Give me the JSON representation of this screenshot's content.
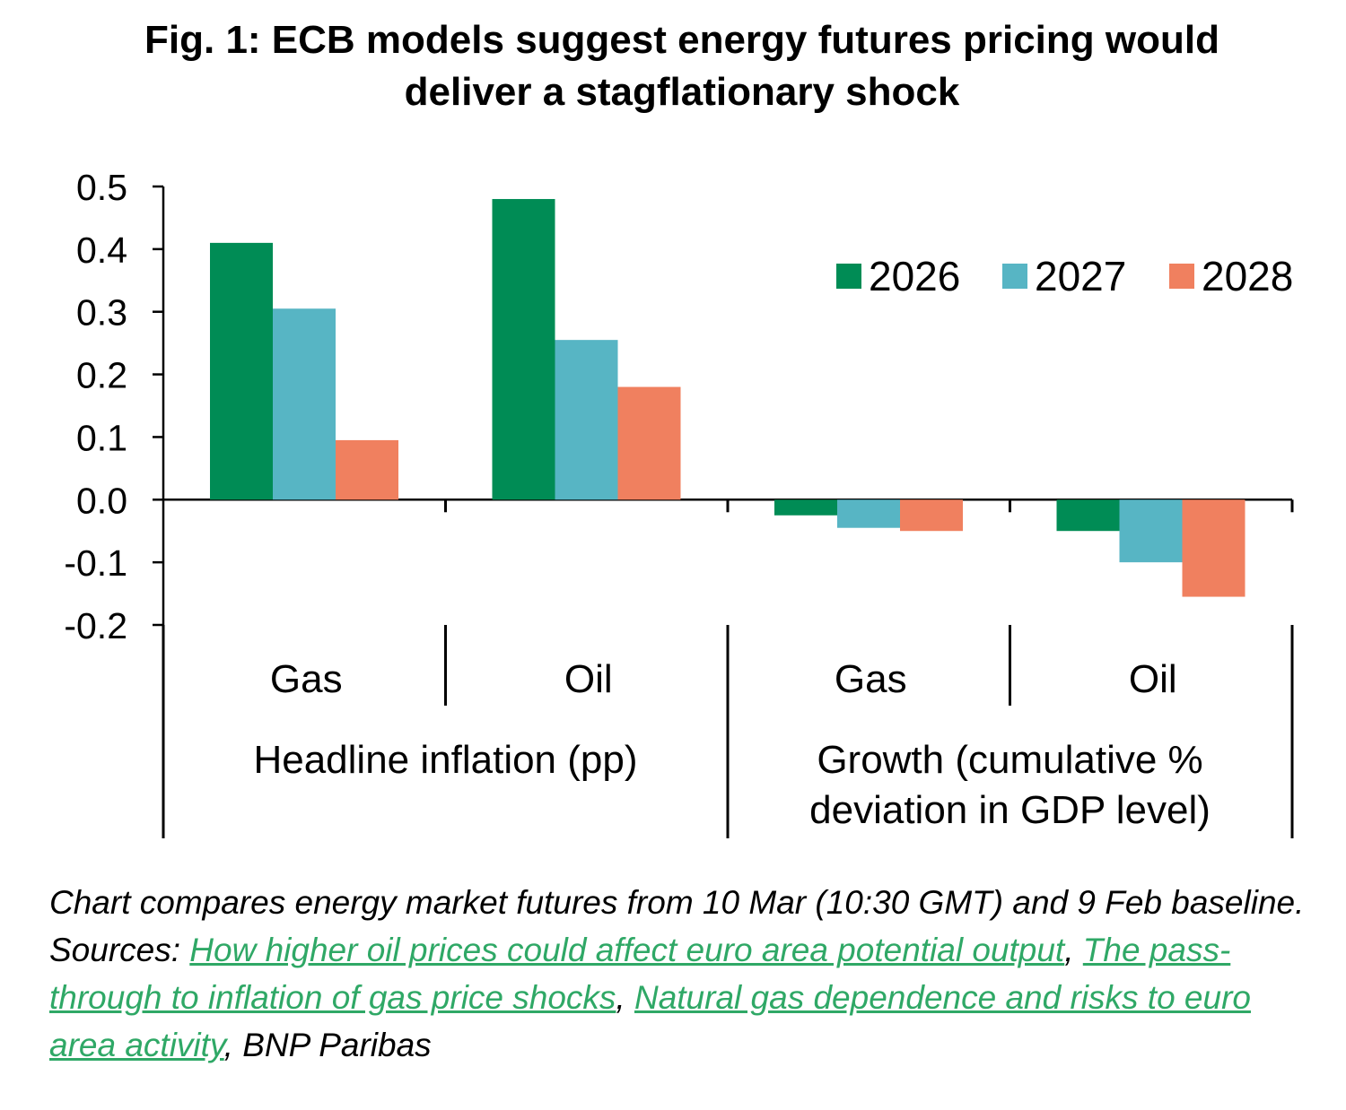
{
  "title": {
    "line1": "Fig. 1: ECB models suggest energy futures pricing would",
    "line2": "deliver a stagflationary shock"
  },
  "chart_data": {
    "type": "bar",
    "categories": [
      {
        "label": "Gas",
        "group": "Headline inflation (pp)"
      },
      {
        "label": "Oil",
        "group": "Headline inflation (pp)"
      },
      {
        "label": "Gas",
        "group": "Growth (cumulative % deviation in GDP level)"
      },
      {
        "label": "Oil",
        "group": "Growth (cumulative % deviation in GDP level)"
      }
    ],
    "groups": [
      {
        "lines": [
          "Headline inflation (pp)"
        ]
      },
      {
        "lines": [
          "Growth (cumulative %",
          "deviation in GDP level)"
        ]
      }
    ],
    "series": [
      {
        "name": "2026",
        "color": "#008c55",
        "values": [
          0.41,
          0.48,
          -0.025,
          -0.05
        ]
      },
      {
        "name": "2027",
        "color": "#57b5c4",
        "values": [
          0.305,
          0.255,
          -0.045,
          -0.1
        ]
      },
      {
        "name": "2028",
        "color": "#f0805f",
        "values": [
          0.095,
          0.18,
          -0.05,
          -0.155
        ]
      }
    ],
    "ylim": [
      -0.2,
      0.5
    ],
    "yticks": [
      "0.5",
      "0.4",
      "0.3",
      "0.2",
      "0.1",
      "0.0",
      "-0.1",
      "-0.2"
    ],
    "legend_position": "top-right",
    "grid": false
  },
  "caption": {
    "text1": "Chart compares energy market futures from 10 Mar (10:30 GMT) and 9 Feb baseline. Sources: ",
    "link1": "How higher oil prices could affect euro area potential output",
    "sep1": ", ",
    "link2": "The pass-through to inflation of gas price shocks",
    "sep2": ", ",
    "link3": "Natural gas dependence and risks to euro area activity",
    "text2": ", BNP Paribas"
  }
}
